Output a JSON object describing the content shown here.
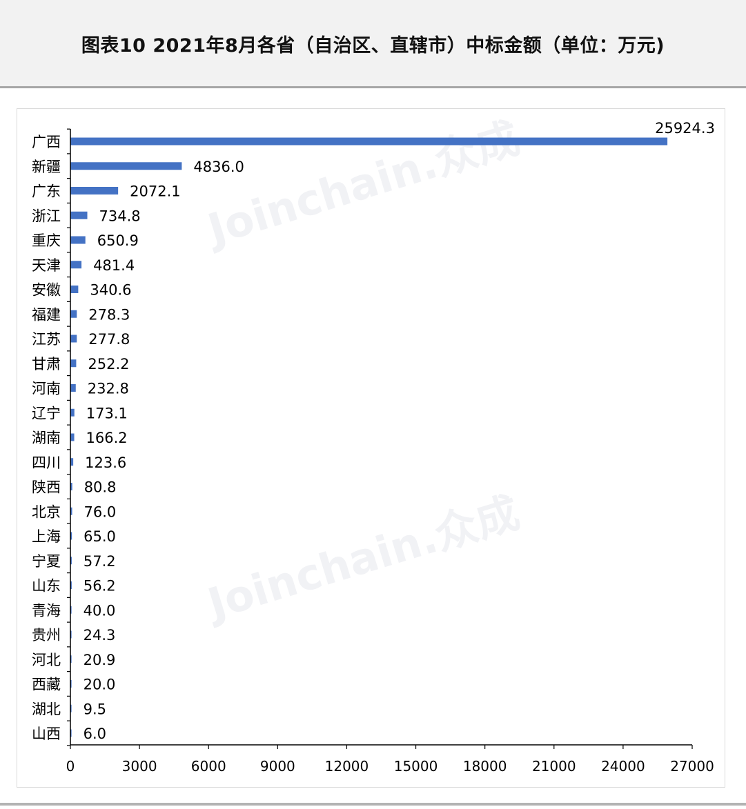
{
  "title": "图表10  2021年8月各省（自治区、直辖市）中标金额（单位：万元)",
  "watermark": {
    "text": "Joinchain.众成"
  },
  "colors": {
    "bar": "#4472c4",
    "axis": "#000000",
    "header_bg": "#f2f2f2"
  },
  "chart_data": {
    "type": "bar",
    "orientation": "horizontal",
    "title": "图表10  2021年8月各省（自治区、直辖市）中标金额（单位：万元)",
    "xlabel": "",
    "ylabel": "",
    "xlim": [
      0,
      27000
    ],
    "xticks": [
      0,
      3000,
      6000,
      9000,
      12000,
      15000,
      18000,
      21000,
      24000,
      27000
    ],
    "grid": false,
    "categories": [
      "广西",
      "新疆",
      "广东",
      "浙江",
      "重庆",
      "天津",
      "安徽",
      "福建",
      "江苏",
      "甘肃",
      "河南",
      "辽宁",
      "湖南",
      "四川",
      "陕西",
      "北京",
      "上海",
      "宁夏",
      "山东",
      "青海",
      "贵州",
      "河北",
      "西藏",
      "湖北",
      "山西"
    ],
    "values": [
      25924.3,
      4836.0,
      2072.1,
      734.8,
      650.9,
      481.4,
      340.6,
      278.3,
      277.8,
      252.2,
      232.8,
      173.1,
      166.2,
      123.6,
      80.8,
      76.0,
      65.0,
      57.2,
      56.2,
      40.0,
      24.3,
      20.9,
      20.0,
      9.5,
      6.0
    ],
    "value_labels": [
      "25924.3",
      "4836.0",
      "2072.1",
      "734.8",
      "650.9",
      "481.4",
      "340.6",
      "278.3",
      "277.8",
      "252.2",
      "232.8",
      "173.1",
      "166.2",
      "123.6",
      "80.8",
      "76.0",
      "65.0",
      "57.2",
      "56.2",
      "40.0",
      "24.3",
      "20.9",
      "20.0",
      "9.5",
      "6.0"
    ]
  }
}
